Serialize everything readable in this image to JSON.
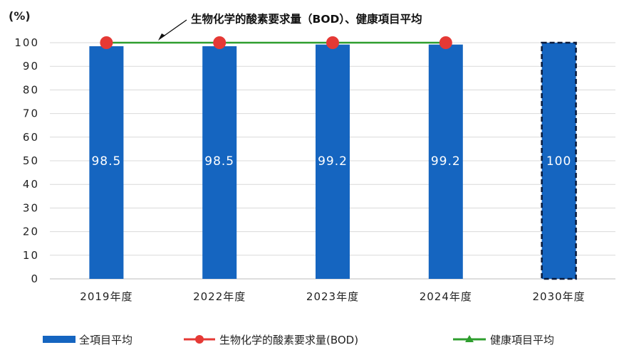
{
  "chart_data": {
    "type": "bar",
    "ylabel": "(%)",
    "ylim": [
      0,
      100
    ],
    "yticks": [
      0,
      10,
      20,
      30,
      40,
      50,
      60,
      70,
      80,
      90,
      100
    ],
    "categories": [
      "2019年度",
      "2022年度",
      "2023年度",
      "2024年度",
      "2030年度"
    ],
    "series": [
      {
        "name": "全項目平均",
        "kind": "bar",
        "color": "#1565c0",
        "values": [
          98.5,
          98.5,
          99.2,
          99.2,
          100
        ],
        "data_labels": [
          "98.5",
          "98.5",
          "99.2",
          "99.2",
          "100"
        ],
        "target_index": 4
      },
      {
        "name": "生物化学的酸素要求量(BOD)",
        "kind": "marker",
        "color": "#e53935",
        "values": [
          100,
          100,
          100,
          100,
          null
        ]
      },
      {
        "name": "健康項目平均",
        "kind": "line",
        "color": "#2e9e2e",
        "values": [
          100,
          100,
          100,
          100,
          null
        ]
      }
    ],
    "annotation": "生物化学的酸素要求量（BOD）、健康項目平均",
    "grid": true,
    "legend_position": "bottom"
  }
}
